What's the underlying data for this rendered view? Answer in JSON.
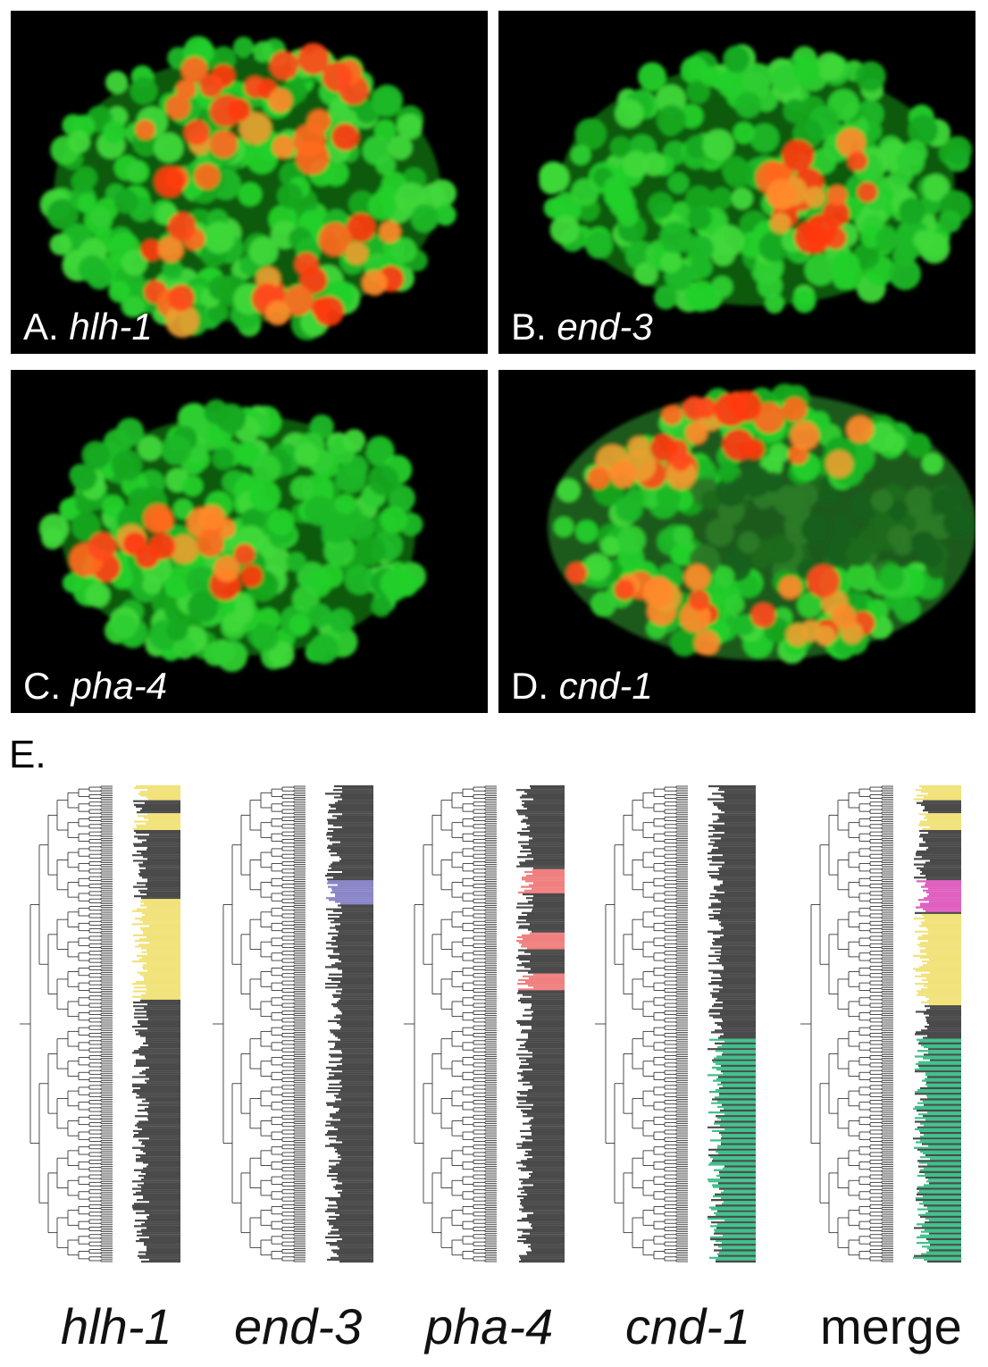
{
  "panels": [
    {
      "letter": "A.",
      "gene": "hlh-1"
    },
    {
      "letter": "B.",
      "gene": "end-3"
    },
    {
      "letter": "C.",
      "gene": "pha-4"
    },
    {
      "letter": "D.",
      "gene": "cnd-1"
    }
  ],
  "section_e": "E.",
  "trees": [
    {
      "label": "hlh-1",
      "italic": true,
      "highlight": "#f1e27a"
    },
    {
      "label": "end-3",
      "italic": true,
      "highlight": "#8a86c8"
    },
    {
      "label": "pha-4",
      "italic": true,
      "highlight": "#f08080"
    },
    {
      "label": "cnd-1",
      "italic": true,
      "highlight": "#3fc08a"
    },
    {
      "label": "merge",
      "italic": false,
      "highlight": "mixed"
    }
  ],
  "colors": {
    "nucleus_green": "#22d02a",
    "expression_red": "#ff4a1a",
    "background": "#000000"
  }
}
